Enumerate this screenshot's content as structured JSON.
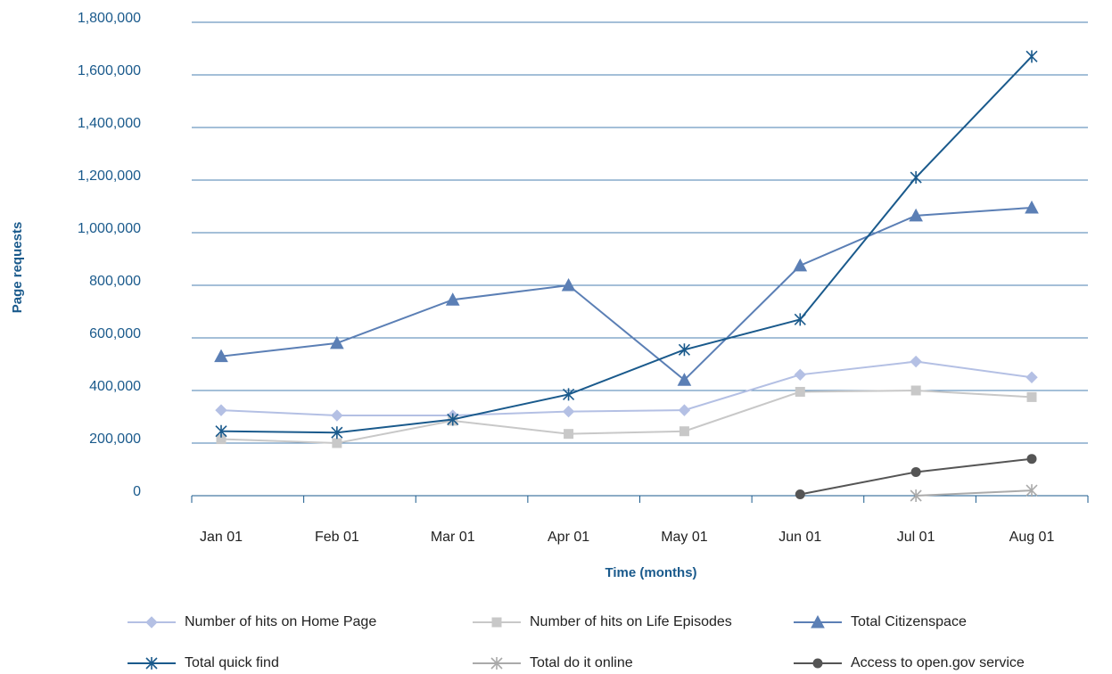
{
  "chart_data": {
    "type": "line",
    "x_label": "Time (months)",
    "y_label": "Page requests",
    "categories": [
      "Jan 01",
      "Feb 01",
      "Mar 01",
      "Apr 01",
      "May 01",
      "Jun 01",
      "Jul 01",
      "Aug 01"
    ],
    "ylim": [
      0,
      1800000
    ],
    "yticks": [
      0,
      {
        "value": 200000,
        "label": "200,000"
      },
      {
        "value": 400000,
        "label": "400,000"
      },
      {
        "value": 600000,
        "label": "600,000"
      },
      {
        "value": 800000,
        "label": "800,000"
      },
      {
        "value": 1000000,
        "label": "1,000,000"
      },
      {
        "value": 1200000,
        "label": "1,200,000"
      },
      {
        "value": 1400000,
        "label": "1,400,000"
      },
      {
        "value": 1600000,
        "label": "1,600,000"
      },
      {
        "value": 1800000,
        "label": "1,800,000"
      }
    ],
    "grid": true,
    "legend": "bottom",
    "series": [
      {
        "name": "Number of hits on Home Page",
        "color": "#b4c0e4",
        "marker": "diamond",
        "values": [
          325000,
          305000,
          305000,
          320000,
          325000,
          460000,
          510000,
          450000
        ]
      },
      {
        "name": "Number of hits on Life Episodes",
        "color": "#c8c8c8",
        "marker": "square",
        "values": [
          215000,
          200000,
          285000,
          235000,
          245000,
          395000,
          400000,
          375000
        ]
      },
      {
        "name": "Total Citizenspace",
        "color": "#5b7fb5",
        "marker": "triangle",
        "values": [
          530000,
          580000,
          745000,
          800000,
          440000,
          875000,
          1065000,
          1095000
        ]
      },
      {
        "name": "Total quick find",
        "color": "#1a5a8c",
        "marker": "asterisk",
        "values": [
          245000,
          240000,
          290000,
          385000,
          555000,
          670000,
          1210000,
          1670000
        ]
      },
      {
        "name": "Total do it online",
        "color": "#aaaaaa",
        "marker": "asterisk",
        "values": [
          null,
          null,
          null,
          null,
          null,
          null,
          0,
          20000
        ]
      },
      {
        "name": "Access to open.gov service",
        "color": "#555555",
        "marker": "circle",
        "values": [
          null,
          null,
          null,
          null,
          null,
          5000,
          90000,
          140000
        ]
      }
    ]
  }
}
